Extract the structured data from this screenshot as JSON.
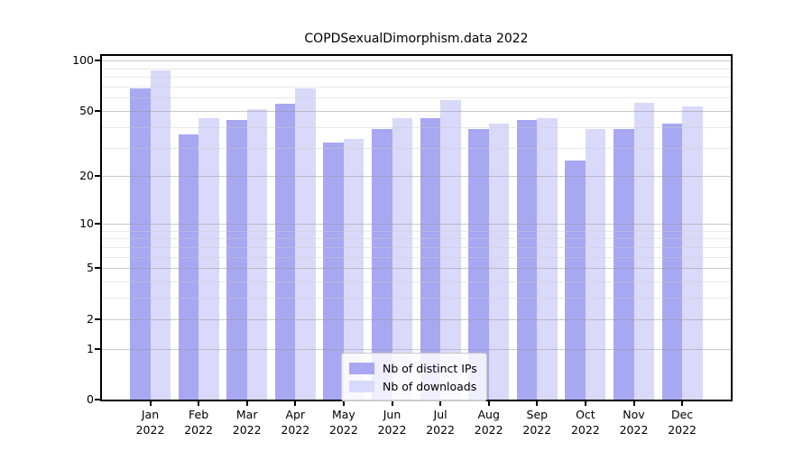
{
  "title": "COPDSexualDimorphism.data 2022",
  "legend": {
    "position": "lower center",
    "items": [
      {
        "label": "Nb of distinct IPs",
        "color": "#a8a8f2"
      },
      {
        "label": "Nb of downloads",
        "color": "#d9d9fa"
      }
    ]
  },
  "axes": {
    "y_tick_labels": [
      "0",
      "1",
      "2",
      "5",
      "10",
      "20",
      "50",
      "100"
    ],
    "x_month_labels": [
      "Jan",
      "Feb",
      "Mar",
      "Apr",
      "May",
      "Jun",
      "Jul",
      "Aug",
      "Sep",
      "Oct",
      "Nov",
      "Dec"
    ],
    "x_year_label": "2022"
  },
  "chart_data": {
    "type": "bar",
    "title": "COPDSexualDimorphism.data 2022",
    "categories": [
      "Jan 2022",
      "Feb 2022",
      "Mar 2022",
      "Apr 2022",
      "May 2022",
      "Jun 2022",
      "Jul 2022",
      "Aug 2022",
      "Sep 2022",
      "Oct 2022",
      "Nov 2022",
      "Dec 2022"
    ],
    "series": [
      {
        "name": "Nb of distinct IPs",
        "color": "#a8a8f2",
        "values": [
          68,
          36,
          44,
          55,
          32,
          39,
          45,
          39,
          44,
          25,
          39,
          42
        ]
      },
      {
        "name": "Nb of downloads",
        "color": "#d9d9fa",
        "values": [
          88,
          45,
          51,
          68,
          34,
          45,
          58,
          42,
          45,
          39,
          56,
          53
        ]
      }
    ],
    "xlabel": "",
    "ylabel": "",
    "yscale": "log1p",
    "ylim": [
      0,
      107
    ],
    "y_major_ticks": [
      0,
      1,
      2,
      5,
      10,
      20,
      50,
      100
    ],
    "y_minor_gridlines": [
      3,
      4,
      6,
      7,
      8,
      9,
      30,
      40,
      60,
      70,
      80,
      90
    ],
    "grid": true,
    "grid_on_top_of_bars": true,
    "legend_position": "lower center"
  }
}
